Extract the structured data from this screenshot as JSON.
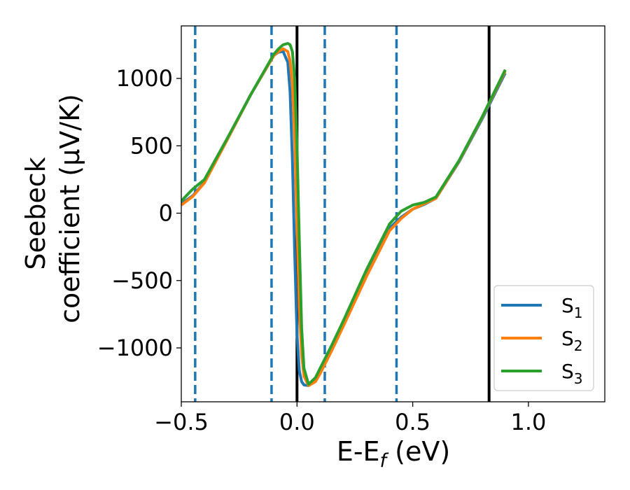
{
  "chart_data": {
    "type": "line",
    "title": "",
    "xlabel": "E-E",
    "xlabel_sub": "f",
    "xlabel_unit": " (eV)",
    "ylabel_line1": "Seebeck",
    "ylabel_line2": "coefficient  (μV/K)",
    "xlim": [
      -0.5,
      1.33
    ],
    "ylim": [
      -1400,
      1390
    ],
    "x_ticks": [
      -0.5,
      0.0,
      0.5,
      1.0
    ],
    "x_tick_labels": [
      "−0.5",
      "0.0",
      "0.5",
      "1.0"
    ],
    "y_ticks": [
      -1000,
      -500,
      0,
      500,
      1000
    ],
    "y_tick_labels": [
      "−1000",
      "−500",
      "0",
      "500",
      "1000"
    ],
    "grid": false,
    "legend_position": "lower-right",
    "series": [
      {
        "name": "S",
        "sub": "1",
        "color": "#1f77b4",
        "x": [
          -0.5,
          -0.45,
          -0.4,
          -0.3,
          -0.2,
          -0.1,
          -0.08,
          -0.06,
          -0.04,
          -0.03,
          -0.02,
          -0.01,
          0.0,
          0.01,
          0.02,
          0.03,
          0.05,
          0.08,
          0.1,
          0.15,
          0.2,
          0.3,
          0.4,
          0.45,
          0.5,
          0.55,
          0.6,
          0.7,
          0.8,
          0.9
        ],
        "y": [
          70,
          130,
          230,
          550,
          880,
          1170,
          1195,
          1200,
          1120,
          900,
          400,
          -300,
          -900,
          -1170,
          -1250,
          -1275,
          -1280,
          -1230,
          -1170,
          -1000,
          -820,
          -450,
          -110,
          -30,
          30,
          65,
          110,
          380,
          700,
          1040
        ]
      },
      {
        "name": "S",
        "sub": "2",
        "color": "#ff7f0e",
        "x": [
          -0.5,
          -0.45,
          -0.4,
          -0.3,
          -0.2,
          -0.1,
          -0.08,
          -0.06,
          -0.04,
          -0.03,
          -0.02,
          -0.01,
          0.0,
          0.01,
          0.02,
          0.03,
          0.05,
          0.08,
          0.1,
          0.15,
          0.2,
          0.3,
          0.4,
          0.45,
          0.5,
          0.55,
          0.6,
          0.7,
          0.8,
          0.9
        ],
        "y": [
          60,
          125,
          225,
          550,
          880,
          1170,
          1200,
          1220,
          1200,
          1130,
          960,
          560,
          -100,
          -700,
          -1050,
          -1210,
          -1280,
          -1250,
          -1190,
          -1020,
          -840,
          -470,
          -130,
          -40,
          30,
          70,
          110,
          385,
          710,
          1055
        ]
      },
      {
        "name": "S",
        "sub": "3",
        "color": "#2ca02c",
        "x": [
          -0.5,
          -0.45,
          -0.4,
          -0.3,
          -0.2,
          -0.1,
          -0.08,
          -0.06,
          -0.04,
          -0.03,
          -0.02,
          -0.01,
          0.0,
          0.01,
          0.02,
          0.03,
          0.05,
          0.08,
          0.1,
          0.15,
          0.2,
          0.3,
          0.4,
          0.45,
          0.5,
          0.55,
          0.6,
          0.7,
          0.8,
          0.9
        ],
        "y": [
          90,
          180,
          250,
          560,
          880,
          1180,
          1220,
          1250,
          1260,
          1250,
          1200,
          1000,
          500,
          -200,
          -850,
          -1150,
          -1270,
          -1220,
          -1150,
          -980,
          -800,
          -420,
          -80,
          15,
          60,
          80,
          120,
          390,
          715,
          1065
        ]
      }
    ],
    "vlines": [
      {
        "x": -0.44,
        "color": "#1f77b4",
        "style": "dashed"
      },
      {
        "x": -0.11,
        "color": "#1f77b4",
        "style": "dashed"
      },
      {
        "x": 0.0,
        "color": "#000000",
        "style": "solid"
      },
      {
        "x": 0.12,
        "color": "#1f77b4",
        "style": "dashed"
      },
      {
        "x": 0.43,
        "color": "#1f77b4",
        "style": "dashed"
      },
      {
        "x": 0.83,
        "color": "#000000",
        "style": "solid"
      }
    ]
  }
}
